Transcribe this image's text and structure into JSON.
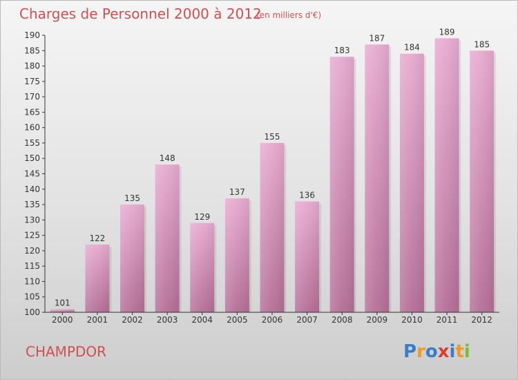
{
  "colors": {
    "title": "#d24f4f",
    "bar_top": "#e7aad0",
    "bar_bottom": "#b46e96",
    "axis": "#333333"
  },
  "commune": "CHAMPDOR",
  "logo": {
    "text": "Proxiti",
    "letter_colors": [
      "#3a7cc9",
      "#f29a1b",
      "#3a7cc9",
      "#e03a2e",
      "#3a7cc9",
      "#f29a1b",
      "#7dbb3a"
    ]
  },
  "chart_data": {
    "type": "bar",
    "title": "Charges de Personnel 2000 à 2012",
    "subtitle": "(en milliers d'€)",
    "xlabel": "",
    "ylabel": "",
    "categories": [
      "2000",
      "2001",
      "2002",
      "2003",
      "2004",
      "2005",
      "2006",
      "2007",
      "2008",
      "2009",
      "2010",
      "2011",
      "2012"
    ],
    "values": [
      101,
      122,
      135,
      148,
      129,
      137,
      155,
      136,
      183,
      187,
      184,
      189,
      185
    ],
    "ylim": [
      100,
      190
    ],
    "yticks": [
      100,
      105,
      110,
      115,
      120,
      125,
      130,
      135,
      140,
      145,
      150,
      155,
      160,
      165,
      170,
      175,
      180,
      185,
      190
    ],
    "grid": false,
    "legend": "none"
  }
}
